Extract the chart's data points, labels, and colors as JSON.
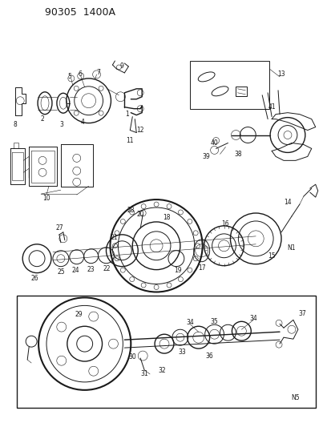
{
  "title": "90305  1400A",
  "bg_color": "#f5f5f0",
  "line_color": "#1a1a1a",
  "fig_width": 4.14,
  "fig_height": 5.33,
  "dpi": 100
}
